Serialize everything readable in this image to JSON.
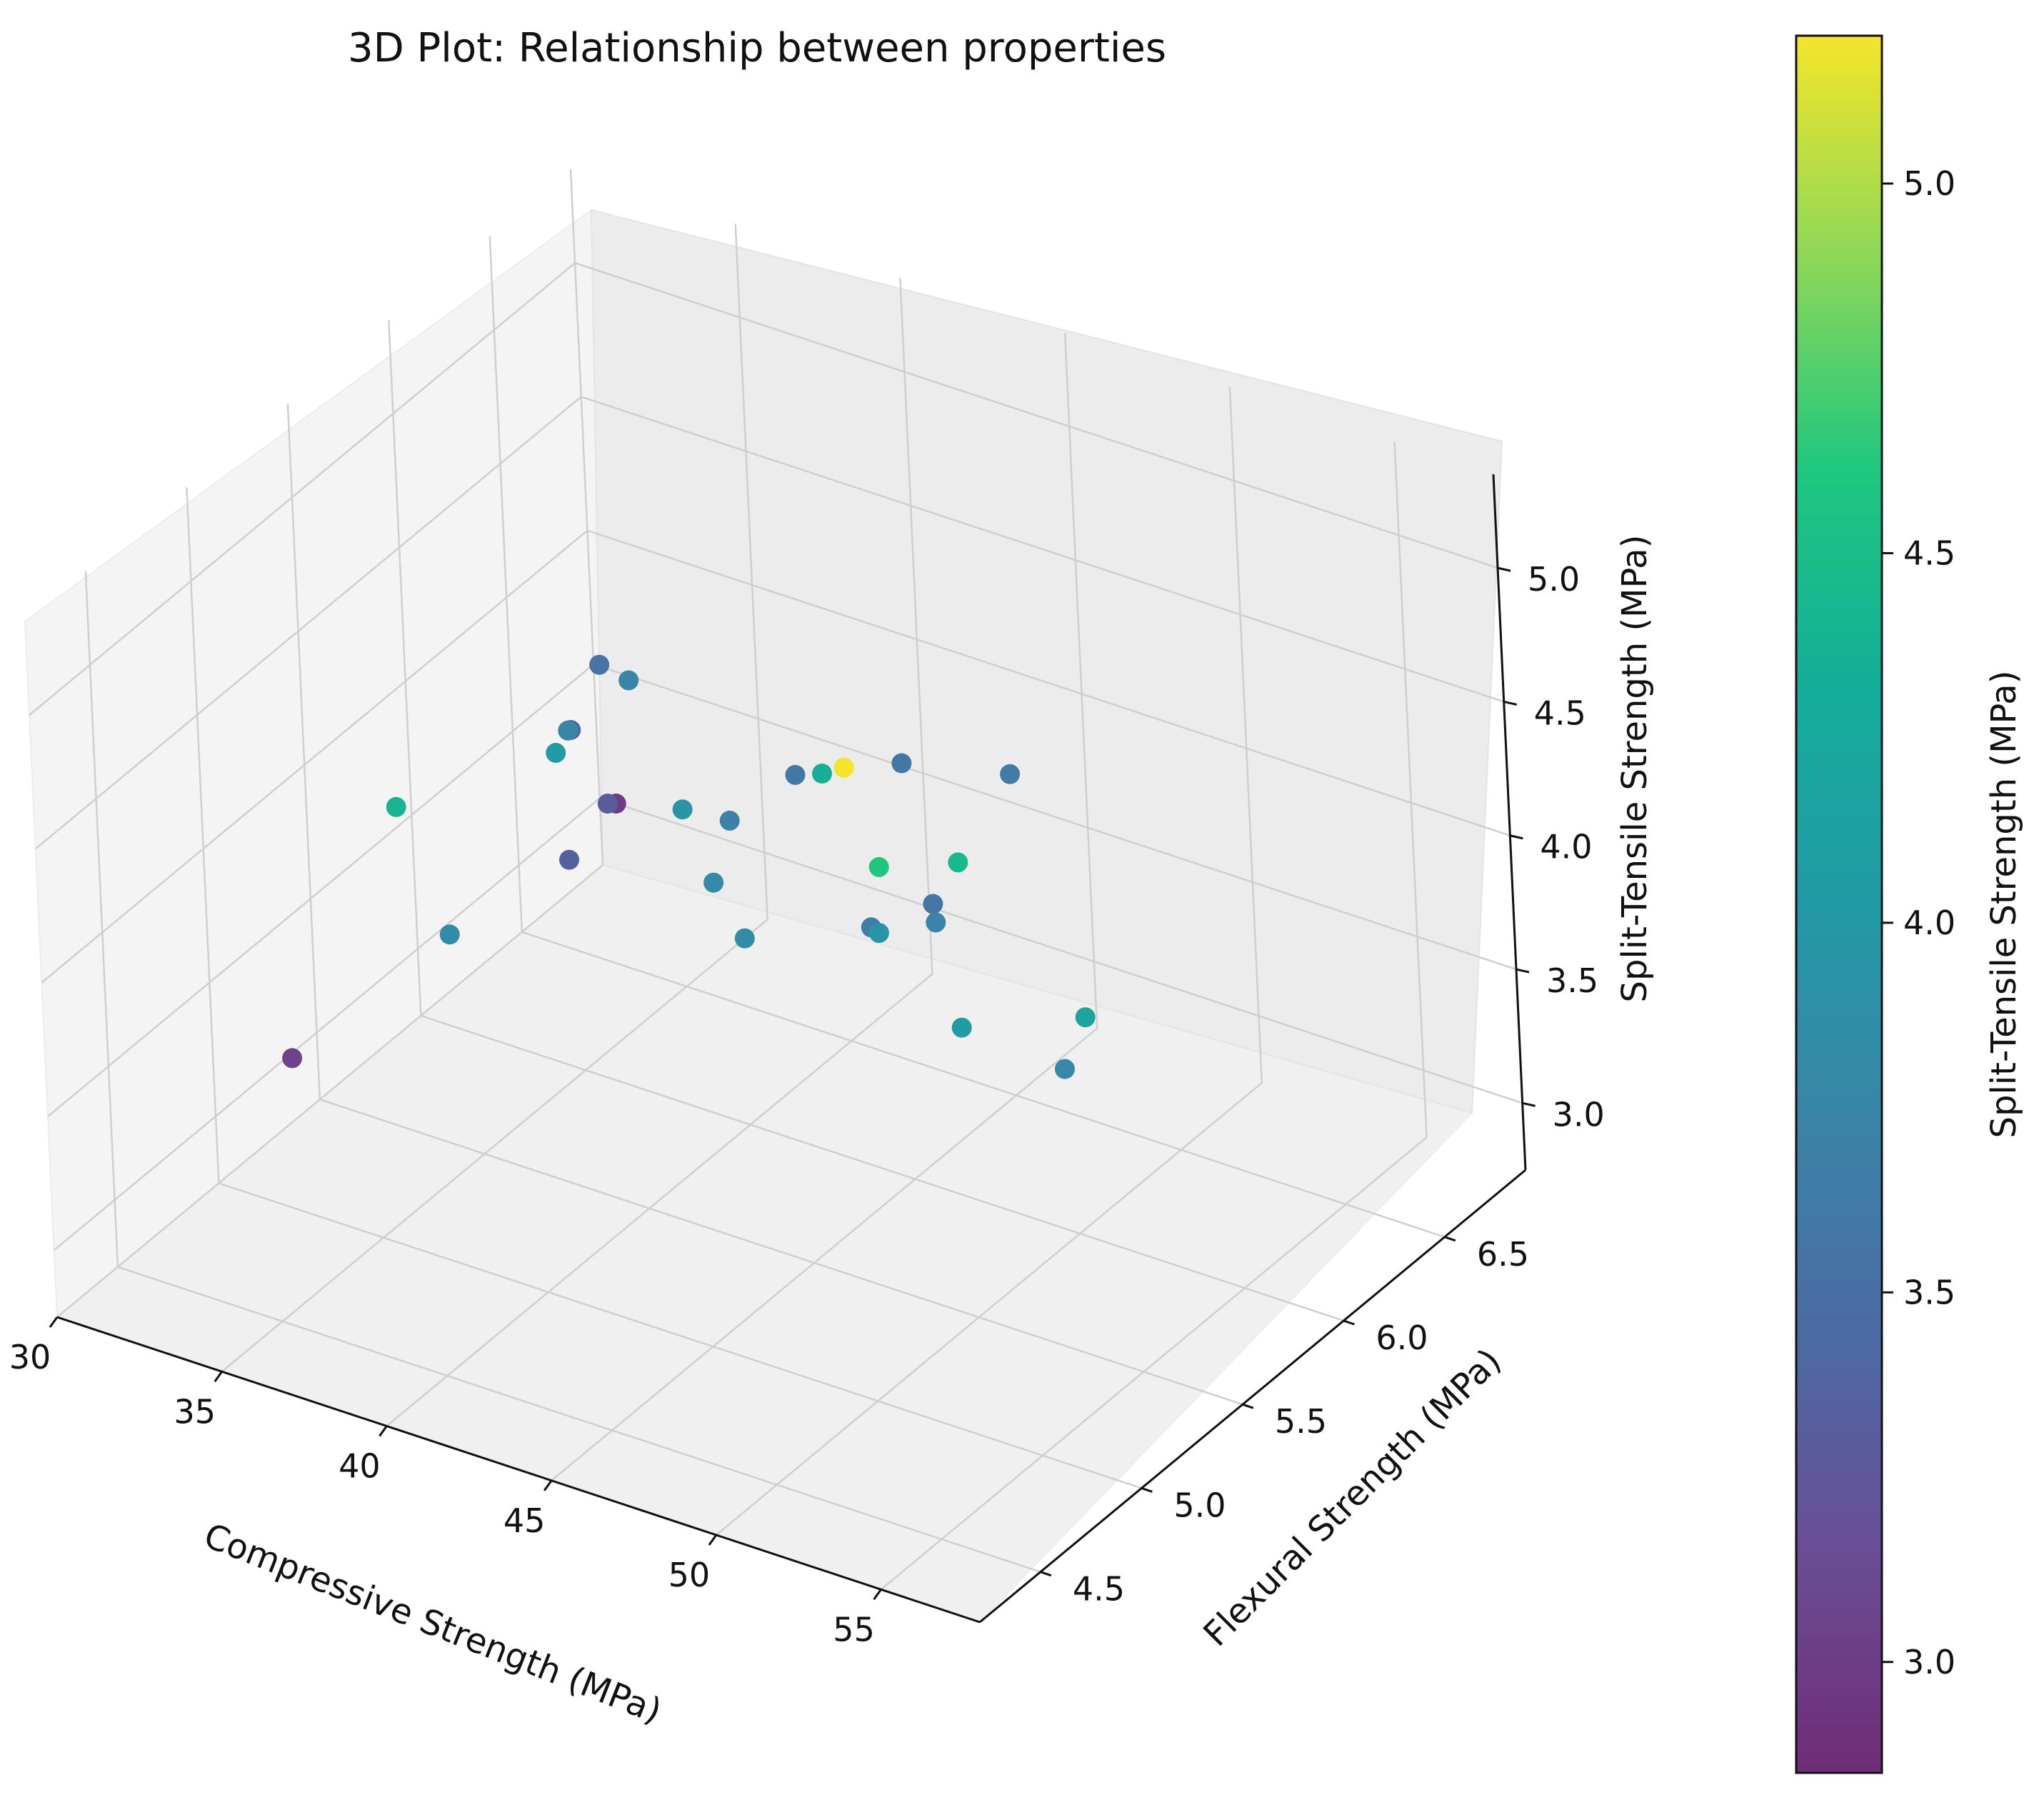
{
  "chart_data": {
    "type": "scatter3d",
    "title": "3D Plot: Relationship between properties",
    "x_axis": {
      "label": "Compressive Strength (MPa)",
      "ticks": [
        "30",
        "35",
        "40",
        "45",
        "50",
        "55"
      ],
      "range": [
        30,
        58
      ]
    },
    "y_axis": {
      "label": "Flexural Strength (MPa)",
      "ticks": [
        "4.5",
        "5.0",
        "5.5",
        "6.0",
        "6.5"
      ],
      "range": [
        4.2,
        6.9
      ]
    },
    "z_axis": {
      "label": "Split-Tensile Strength (MPa)",
      "ticks": [
        "3.0",
        "3.5",
        "4.0",
        "4.5",
        "5.0"
      ],
      "range": [
        2.75,
        5.35
      ]
    },
    "colorbar": {
      "label": "Split-Tensile Strength (MPa)",
      "ticks": [
        "3.0",
        "3.5",
        "4.0",
        "4.5",
        "5.0"
      ],
      "range": [
        2.85,
        5.2
      ],
      "colormap": "viridis"
    },
    "points": [
      {
        "x": 36.0,
        "y": 5.0,
        "z": 4.4
      },
      {
        "x": 36.5,
        "y": 5.15,
        "z": 3.85
      },
      {
        "x": 50.5,
        "y": 4.9,
        "z": 5.2
      },
      {
        "x": 44.0,
        "y": 5.8,
        "z": 4.35
      },
      {
        "x": 50.0,
        "y": 5.5,
        "z": 4.45
      },
      {
        "x": 55.0,
        "y": 5.3,
        "z": 4.2
      },
      {
        "x": 49.5,
        "y": 5.2,
        "z": 4.6
      },
      {
        "x": 51.5,
        "y": 5.25,
        "z": 4.05
      },
      {
        "x": 35.5,
        "y": 5.85,
        "z": 4.05
      },
      {
        "x": 43.0,
        "y": 5.55,
        "z": 3.85
      },
      {
        "x": 39.0,
        "y": 5.9,
        "z": 3.95
      },
      {
        "x": 46.5,
        "y": 5.65,
        "z": 3.95
      },
      {
        "x": 53.0,
        "y": 5.5,
        "z": 3.8
      },
      {
        "x": 40.5,
        "y": 5.8,
        "z": 3.8
      },
      {
        "x": 44.0,
        "y": 6.0,
        "z": 3.65
      },
      {
        "x": 46.0,
        "y": 6.0,
        "z": 3.75
      },
      {
        "x": 44.0,
        "y": 6.3,
        "z": 3.55
      },
      {
        "x": 38.5,
        "y": 6.2,
        "z": 3.7
      },
      {
        "x": 33.0,
        "y": 6.3,
        "z": 3.75
      },
      {
        "x": 33.5,
        "y": 6.2,
        "z": 3.35
      },
      {
        "x": 33.0,
        "y": 6.6,
        "z": 3.75
      },
      {
        "x": 38.0,
        "y": 6.6,
        "z": 3.6
      },
      {
        "x": 40.0,
        "y": 6.8,
        "z": 3.6
      },
      {
        "x": 43.0,
        "y": 6.85,
        "z": 3.65
      },
      {
        "x": 32.5,
        "y": 6.55,
        "z": 3.3
      },
      {
        "x": 30.5,
        "y": 6.85,
        "z": 3.55
      },
      {
        "x": 30.5,
        "y": 6.9,
        "z": 3.0
      },
      {
        "x": 30.5,
        "y": 6.7,
        "z": 3.4
      },
      {
        "x": 30.5,
        "y": 5.3,
        "z": 3.05
      }
    ]
  }
}
